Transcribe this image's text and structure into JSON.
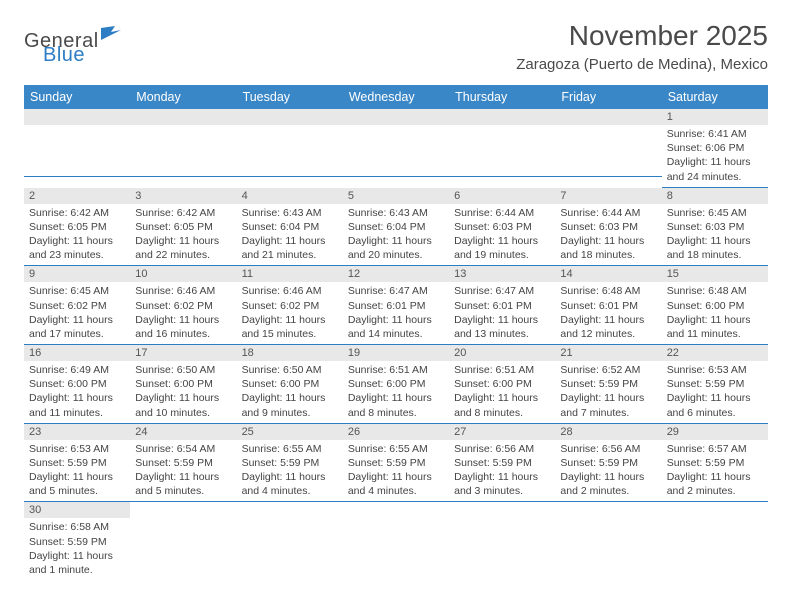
{
  "logo": {
    "part1": "General",
    "part2": "Blue"
  },
  "title": "November 2025",
  "location": "Zaragoza (Puerto de Medina), Mexico",
  "header_color": "#3a87c8",
  "daynum_bg": "#e8e8e8",
  "divider_color": "#2d7dc4",
  "weekdays": [
    "Sunday",
    "Monday",
    "Tuesday",
    "Wednesday",
    "Thursday",
    "Friday",
    "Saturday"
  ],
  "weeks": [
    [
      {
        "blank": true
      },
      {
        "blank": true
      },
      {
        "blank": true
      },
      {
        "blank": true
      },
      {
        "blank": true
      },
      {
        "blank": true
      },
      {
        "n": "1",
        "sr": "Sunrise: 6:41 AM",
        "ss": "Sunset: 6:06 PM",
        "dl": "Daylight: 11 hours and 24 minutes."
      }
    ],
    [
      {
        "n": "2",
        "sr": "Sunrise: 6:42 AM",
        "ss": "Sunset: 6:05 PM",
        "dl": "Daylight: 11 hours and 23 minutes."
      },
      {
        "n": "3",
        "sr": "Sunrise: 6:42 AM",
        "ss": "Sunset: 6:05 PM",
        "dl": "Daylight: 11 hours and 22 minutes."
      },
      {
        "n": "4",
        "sr": "Sunrise: 6:43 AM",
        "ss": "Sunset: 6:04 PM",
        "dl": "Daylight: 11 hours and 21 minutes."
      },
      {
        "n": "5",
        "sr": "Sunrise: 6:43 AM",
        "ss": "Sunset: 6:04 PM",
        "dl": "Daylight: 11 hours and 20 minutes."
      },
      {
        "n": "6",
        "sr": "Sunrise: 6:44 AM",
        "ss": "Sunset: 6:03 PM",
        "dl": "Daylight: 11 hours and 19 minutes."
      },
      {
        "n": "7",
        "sr": "Sunrise: 6:44 AM",
        "ss": "Sunset: 6:03 PM",
        "dl": "Daylight: 11 hours and 18 minutes."
      },
      {
        "n": "8",
        "sr": "Sunrise: 6:45 AM",
        "ss": "Sunset: 6:03 PM",
        "dl": "Daylight: 11 hours and 18 minutes."
      }
    ],
    [
      {
        "n": "9",
        "sr": "Sunrise: 6:45 AM",
        "ss": "Sunset: 6:02 PM",
        "dl": "Daylight: 11 hours and 17 minutes."
      },
      {
        "n": "10",
        "sr": "Sunrise: 6:46 AM",
        "ss": "Sunset: 6:02 PM",
        "dl": "Daylight: 11 hours and 16 minutes."
      },
      {
        "n": "11",
        "sr": "Sunrise: 6:46 AM",
        "ss": "Sunset: 6:02 PM",
        "dl": "Daylight: 11 hours and 15 minutes."
      },
      {
        "n": "12",
        "sr": "Sunrise: 6:47 AM",
        "ss": "Sunset: 6:01 PM",
        "dl": "Daylight: 11 hours and 14 minutes."
      },
      {
        "n": "13",
        "sr": "Sunrise: 6:47 AM",
        "ss": "Sunset: 6:01 PM",
        "dl": "Daylight: 11 hours and 13 minutes."
      },
      {
        "n": "14",
        "sr": "Sunrise: 6:48 AM",
        "ss": "Sunset: 6:01 PM",
        "dl": "Daylight: 11 hours and 12 minutes."
      },
      {
        "n": "15",
        "sr": "Sunrise: 6:48 AM",
        "ss": "Sunset: 6:00 PM",
        "dl": "Daylight: 11 hours and 11 minutes."
      }
    ],
    [
      {
        "n": "16",
        "sr": "Sunrise: 6:49 AM",
        "ss": "Sunset: 6:00 PM",
        "dl": "Daylight: 11 hours and 11 minutes."
      },
      {
        "n": "17",
        "sr": "Sunrise: 6:50 AM",
        "ss": "Sunset: 6:00 PM",
        "dl": "Daylight: 11 hours and 10 minutes."
      },
      {
        "n": "18",
        "sr": "Sunrise: 6:50 AM",
        "ss": "Sunset: 6:00 PM",
        "dl": "Daylight: 11 hours and 9 minutes."
      },
      {
        "n": "19",
        "sr": "Sunrise: 6:51 AM",
        "ss": "Sunset: 6:00 PM",
        "dl": "Daylight: 11 hours and 8 minutes."
      },
      {
        "n": "20",
        "sr": "Sunrise: 6:51 AM",
        "ss": "Sunset: 6:00 PM",
        "dl": "Daylight: 11 hours and 8 minutes."
      },
      {
        "n": "21",
        "sr": "Sunrise: 6:52 AM",
        "ss": "Sunset: 5:59 PM",
        "dl": "Daylight: 11 hours and 7 minutes."
      },
      {
        "n": "22",
        "sr": "Sunrise: 6:53 AM",
        "ss": "Sunset: 5:59 PM",
        "dl": "Daylight: 11 hours and 6 minutes."
      }
    ],
    [
      {
        "n": "23",
        "sr": "Sunrise: 6:53 AM",
        "ss": "Sunset: 5:59 PM",
        "dl": "Daylight: 11 hours and 5 minutes."
      },
      {
        "n": "24",
        "sr": "Sunrise: 6:54 AM",
        "ss": "Sunset: 5:59 PM",
        "dl": "Daylight: 11 hours and 5 minutes."
      },
      {
        "n": "25",
        "sr": "Sunrise: 6:55 AM",
        "ss": "Sunset: 5:59 PM",
        "dl": "Daylight: 11 hours and 4 minutes."
      },
      {
        "n": "26",
        "sr": "Sunrise: 6:55 AM",
        "ss": "Sunset: 5:59 PM",
        "dl": "Daylight: 11 hours and 4 minutes."
      },
      {
        "n": "27",
        "sr": "Sunrise: 6:56 AM",
        "ss": "Sunset: 5:59 PM",
        "dl": "Daylight: 11 hours and 3 minutes."
      },
      {
        "n": "28",
        "sr": "Sunrise: 6:56 AM",
        "ss": "Sunset: 5:59 PM",
        "dl": "Daylight: 11 hours and 2 minutes."
      },
      {
        "n": "29",
        "sr": "Sunrise: 6:57 AM",
        "ss": "Sunset: 5:59 PM",
        "dl": "Daylight: 11 hours and 2 minutes."
      }
    ],
    [
      {
        "n": "30",
        "sr": "Sunrise: 6:58 AM",
        "ss": "Sunset: 5:59 PM",
        "dl": "Daylight: 11 hours and 1 minute.",
        "trailing": true
      },
      {
        "blank": true,
        "trailing": true
      },
      {
        "blank": true,
        "trailing": true
      },
      {
        "blank": true,
        "trailing": true
      },
      {
        "blank": true,
        "trailing": true
      },
      {
        "blank": true,
        "trailing": true
      },
      {
        "blank": true,
        "trailing": true
      }
    ]
  ]
}
